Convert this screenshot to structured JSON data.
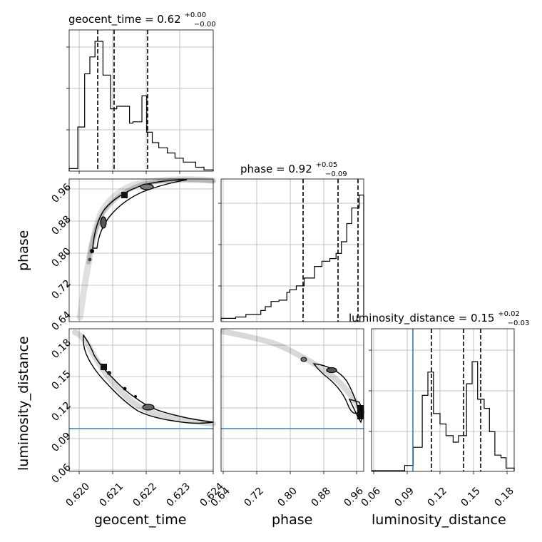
{
  "chart_data": {
    "type": "corner",
    "parameters": [
      {
        "name": "geocent_time",
        "axis_label": "geocent_time",
        "title": {
          "label": "geocent_time = 0.62",
          "upper": "+0.00",
          "lower": "−0.00"
        },
        "range": [
          0.61985,
          0.62403
        ],
        "ticks": [
          0.62,
          0.621,
          0.622,
          0.623,
          0.624
        ],
        "tick_labels": [
          "0.620",
          "0.621",
          "0.622",
          "0.623",
          "0.624"
        ],
        "quantiles": [
          0.62055,
          0.62108,
          0.62209
        ],
        "truth": null,
        "hist": {
          "edges": [
            0.61985,
            0.6201,
            0.6203,
            0.62045,
            0.6206,
            0.62083,
            0.62105,
            0.62123,
            0.6216,
            0.6217,
            0.62196,
            0.6221,
            0.62226,
            0.62245,
            0.6227,
            0.62292,
            0.62316,
            0.62352,
            0.62376,
            0.62403
          ],
          "counts": [
            0.02,
            0.34,
            0.75,
            0.88,
            1.0,
            0.74,
            0.48,
            0.5,
            0.37,
            0.38,
            0.58,
            0.3,
            0.22,
            0.18,
            0.14,
            0.1,
            0.07,
            0.03,
            0.01
          ]
        }
      },
      {
        "name": "phase",
        "axis_label": "phase",
        "title": {
          "label": "phase = 0.92",
          "upper": "+0.05",
          "lower": "−0.09"
        },
        "range": [
          0.637,
          0.982
        ],
        "ticks": [
          0.64,
          0.72,
          0.8,
          0.88,
          0.96
        ],
        "tick_labels": [
          "0.64",
          "0.72",
          "0.80",
          "0.88",
          "0.96"
        ],
        "quantiles": [
          0.83,
          0.915,
          0.965
        ],
        "truth": null,
        "hist": {
          "edges": [
            0.637,
            0.672,
            0.697,
            0.733,
            0.744,
            0.758,
            0.777,
            0.796,
            0.803,
            0.819,
            0.838,
            0.863,
            0.881,
            0.9,
            0.915,
            0.928,
            0.941,
            0.953,
            0.971,
            0.982
          ],
          "counts": [
            0.02,
            0.03,
            0.05,
            0.08,
            0.11,
            0.15,
            0.16,
            0.22,
            0.24,
            0.27,
            0.33,
            0.42,
            0.46,
            0.48,
            0.52,
            0.61,
            0.75,
            0.87,
            0.97
          ]
        }
      },
      {
        "name": "luminosity_distance",
        "axis_label": "luminosity_distance",
        "title": {
          "label": "luminosity_distance = 0.15",
          "upper": "+0.02",
          "lower": "−0.03"
        },
        "range": [
          0.058,
          0.193
        ],
        "ticks": [
          0.06,
          0.09,
          0.12,
          0.15,
          0.18
        ],
        "tick_labels": [
          "0.06",
          "0.09",
          "0.12",
          "0.15",
          "0.18"
        ],
        "quantiles": [
          0.1155,
          0.1475,
          0.1635
        ],
        "truth": 0.0985,
        "hist": {
          "edges": [
            0.058,
            0.0893,
            0.0975,
            0.106,
            0.1113,
            0.1166,
            0.1228,
            0.1285,
            0.1352,
            0.1403,
            0.1479,
            0.1532,
            0.1584,
            0.1646,
            0.1696,
            0.1747,
            0.1805,
            0.1853,
            0.193
          ],
          "counts": [
            0.0,
            0.04,
            0.18,
            0.58,
            0.76,
            0.44,
            0.36,
            0.27,
            0.22,
            0.27,
            0.67,
            0.84,
            0.55,
            0.48,
            0.3,
            0.12,
            0.1,
            0.02
          ]
        }
      }
    ],
    "grid": true,
    "samples_2d": {
      "geocent_time_vs_phase": {
        "x": [
          0.62,
          0.6201,
          0.62025,
          0.6204,
          0.6206,
          0.6208,
          0.621,
          0.6212,
          0.6214,
          0.6217,
          0.622,
          0.6224,
          0.6228,
          0.6232,
          0.6236,
          0.624
        ],
        "y": [
          0.66,
          0.74,
          0.79,
          0.83,
          0.87,
          0.895,
          0.915,
          0.93,
          0.943,
          0.955,
          0.965,
          0.972,
          0.975,
          0.974,
          0.972,
          0.97
        ]
      },
      "geocent_time_vs_luminosity_distance": {
        "x": [
          0.62005,
          0.6202,
          0.6204,
          0.6206,
          0.6208,
          0.621,
          0.6213,
          0.6216,
          0.6219,
          0.6222,
          0.6226,
          0.623,
          0.6234,
          0.6238,
          0.624
        ],
        "y": [
          0.187,
          0.183,
          0.172,
          0.162,
          0.154,
          0.148,
          0.141,
          0.133,
          0.125,
          0.118,
          0.113,
          0.11,
          0.108,
          0.106,
          0.105
        ]
      },
      "phase_vs_luminosity_distance": {
        "x": [
          0.64,
          0.68,
          0.72,
          0.76,
          0.79,
          0.82,
          0.85,
          0.88,
          0.9,
          0.92,
          0.94,
          0.96,
          0.98
        ],
        "y": [
          0.186,
          0.184,
          0.182,
          0.18,
          0.176,
          0.17,
          0.165,
          0.158,
          0.152,
          0.146,
          0.138,
          0.128,
          0.112
        ]
      }
    }
  }
}
